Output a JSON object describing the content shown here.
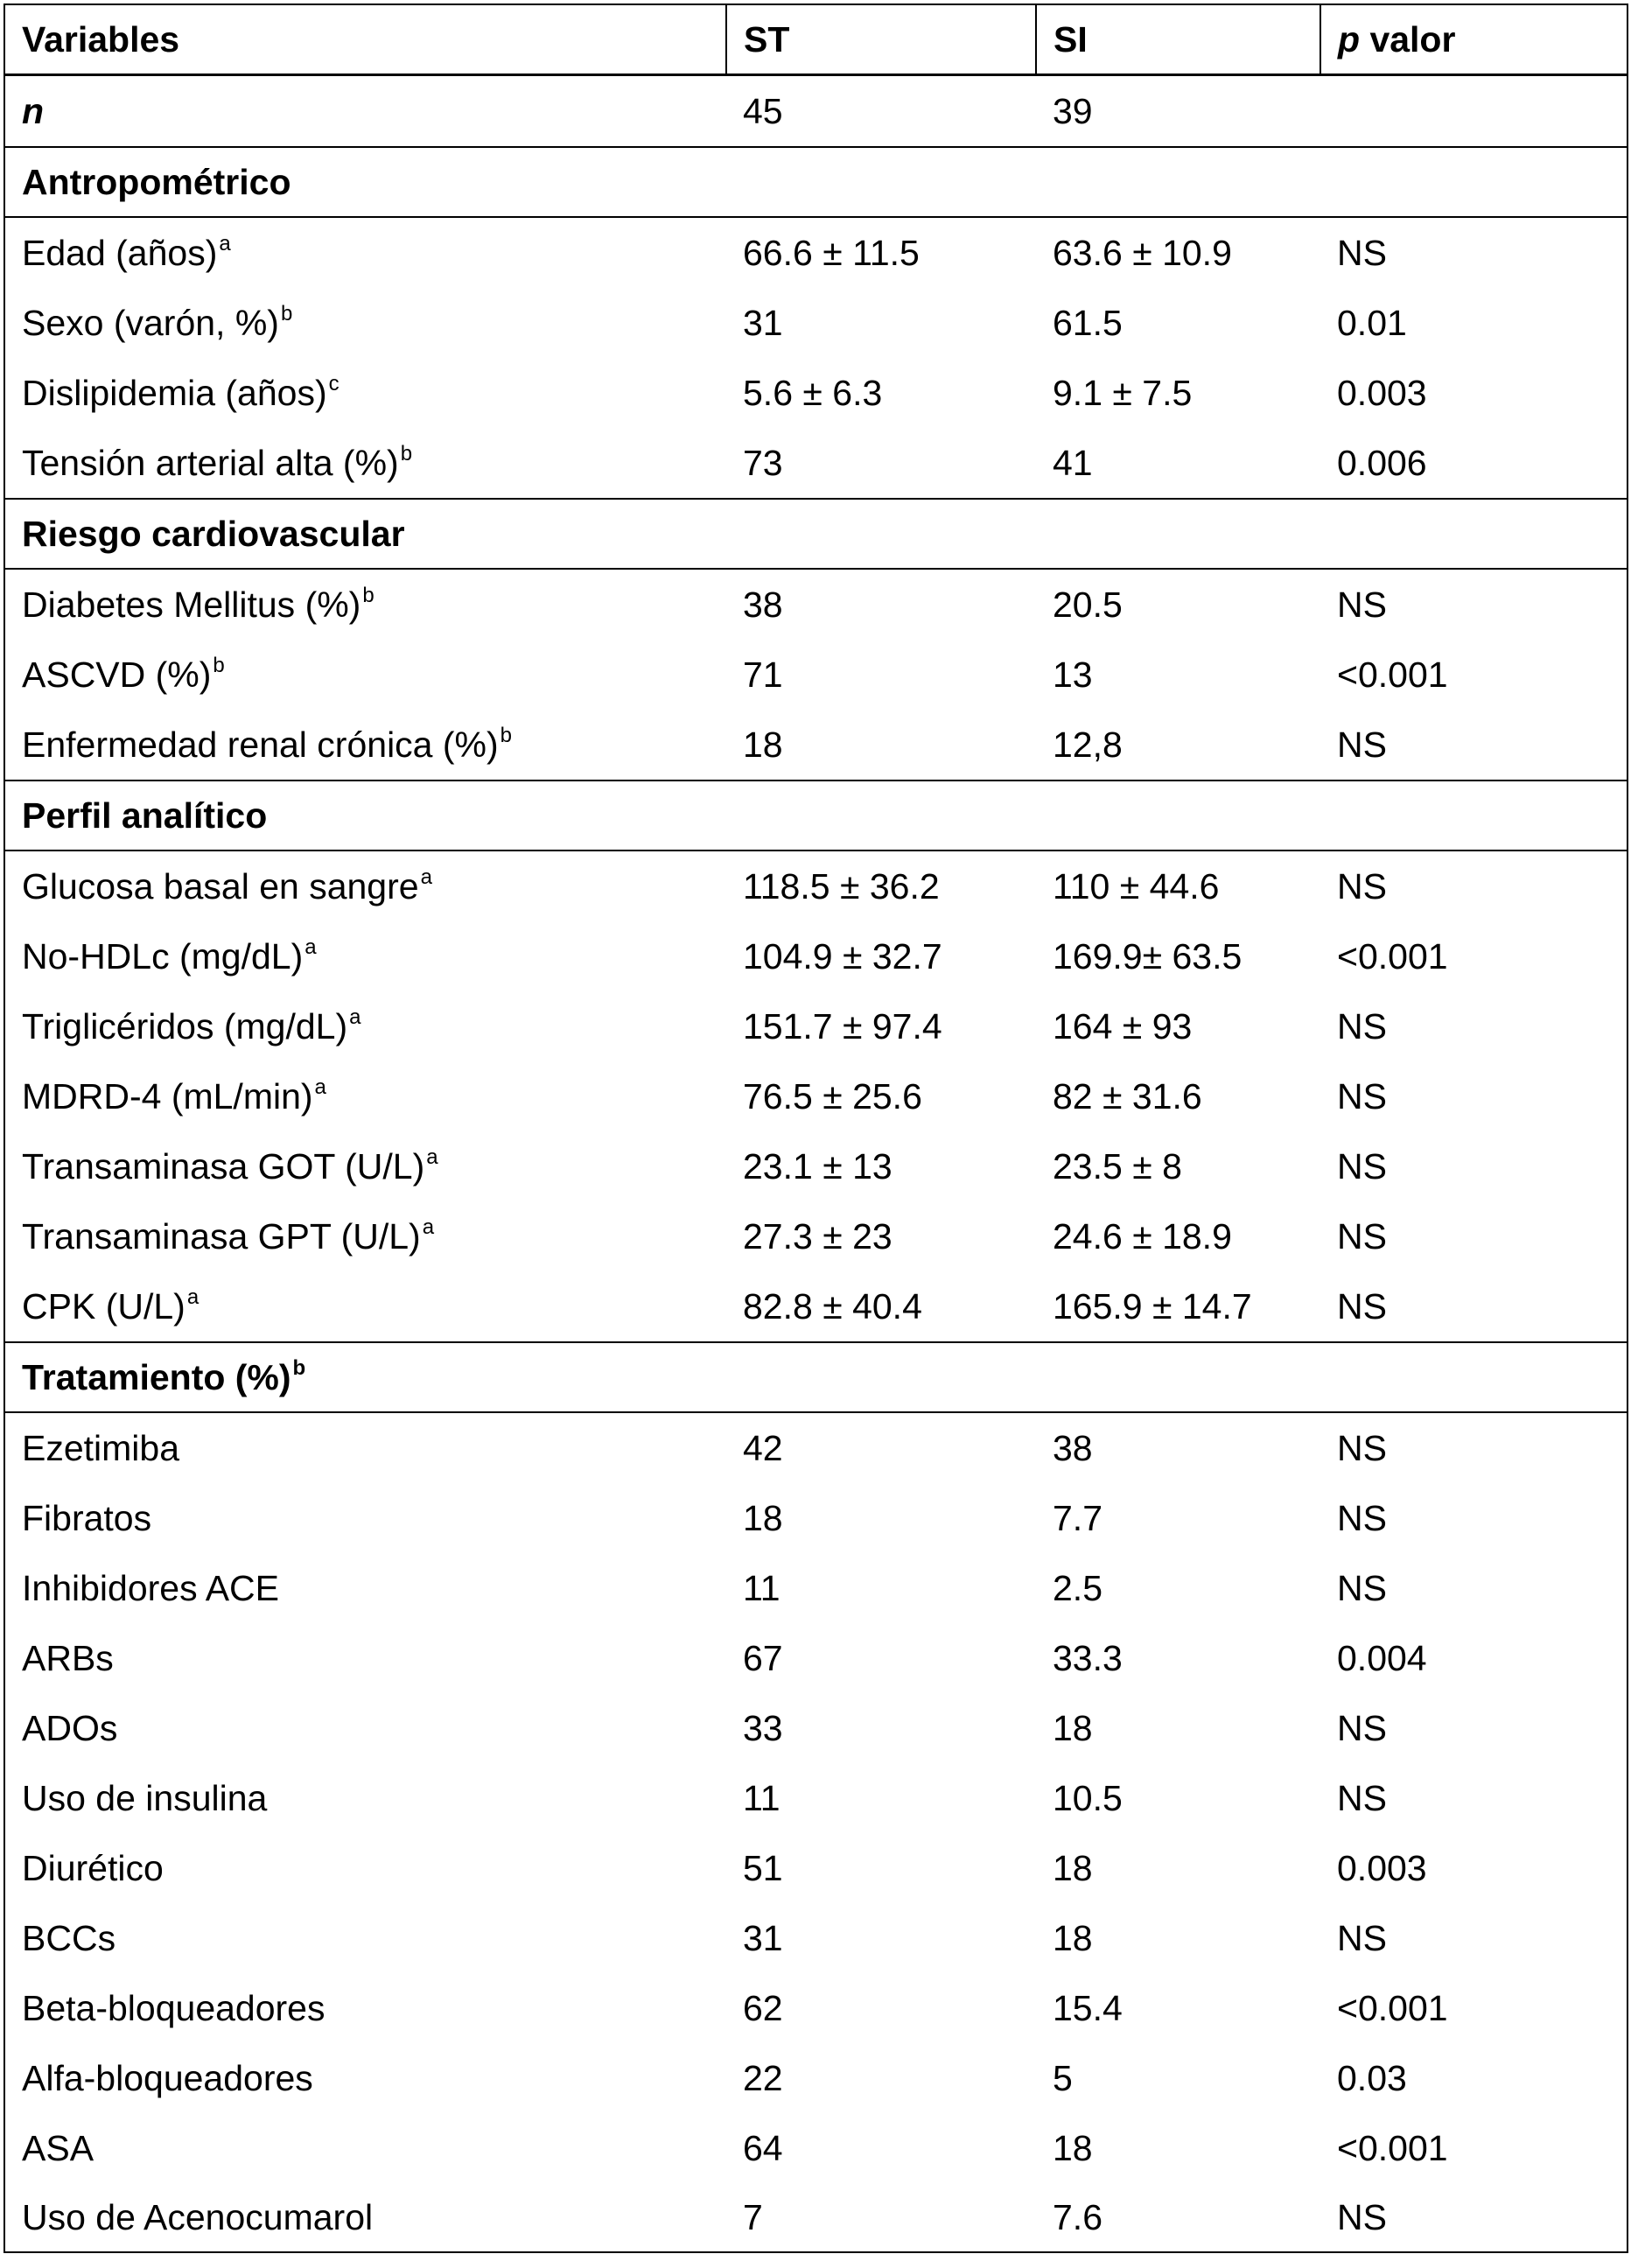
{
  "header": {
    "variables": "Variables",
    "st": "ST",
    "si": "SI",
    "p_italic": "p",
    "p_rest": " valor"
  },
  "n_row": {
    "label": "n",
    "st": "45",
    "si": "39",
    "p": ""
  },
  "sections": [
    {
      "title": "Antropométrico",
      "title_sup": "",
      "rows": [
        {
          "label": "Edad (años)",
          "sup": "a",
          "st": "66.6 ± 11.5",
          "si": "63.6 ± 10.9",
          "p": "NS"
        },
        {
          "label": "Sexo (varón, %)",
          "sup": "b",
          "st": "31",
          "si": "61.5",
          "p": "0.01"
        },
        {
          "label": "Dislipidemia (años)",
          "sup": "c",
          "st": "5.6 ± 6.3",
          "si": "9.1 ± 7.5",
          "p": "0.003"
        },
        {
          "label": "Tensión arterial alta (%)",
          "sup": "b",
          "st": "73",
          "si": "41",
          "p": "0.006"
        }
      ]
    },
    {
      "title": "Riesgo cardiovascular",
      "title_sup": "",
      "rows": [
        {
          "label": "Diabetes Mellitus (%)",
          "sup": "b",
          "st": "38",
          "si": "20.5",
          "p": "NS"
        },
        {
          "label": "ASCVD (%)",
          "sup": "b",
          "st": "71",
          "si": "13",
          "p": "<0.001"
        },
        {
          "label": "Enfermedad renal crónica (%)",
          "sup": "b",
          "st": "18",
          "si": "12,8",
          "p": "NS"
        }
      ]
    },
    {
      "title": "Perfil analítico",
      "title_sup": "",
      "rows": [
        {
          "label": "Glucosa basal en sangre",
          "sup": "a",
          "st": "118.5 ± 36.2",
          "si": "110 ± 44.6",
          "p": "NS"
        },
        {
          "label": "No-HDLc (mg/dL)",
          "sup": "a",
          "st": "104.9 ± 32.7",
          "si": "169.9± 63.5",
          "p": "<0.001"
        },
        {
          "label": "Triglicéridos (mg/dL)",
          "sup": "a",
          "st": "151.7 ± 97.4",
          "si": "164 ± 93",
          "p": "NS"
        },
        {
          "label": "MDRD-4 (mL/min)",
          "sup": "a",
          "st": "76.5 ± 25.6",
          "si": "82 ± 31.6",
          "p": "NS"
        },
        {
          "label": "Transaminasa GOT (U/L)",
          "sup": "a",
          "st": "23.1 ± 13",
          "si": "23.5 ± 8",
          "p": "NS"
        },
        {
          "label": "Transaminasa GPT (U/L)",
          "sup": "a",
          "st": "27.3 ± 23",
          "si": "24.6 ± 18.9",
          "p": "NS"
        },
        {
          "label": "CPK (U/L)",
          "sup": "a",
          "st": "82.8 ± 40.4",
          "si": "165.9 ± 14.7",
          "p": "NS"
        }
      ]
    },
    {
      "title": "Tratamiento (%)",
      "title_sup": "b",
      "rows": [
        {
          "label": "Ezetimiba",
          "sup": "",
          "st": "42",
          "si": "38",
          "p": "NS"
        },
        {
          "label": "Fibratos",
          "sup": "",
          "st": "18",
          "si": "7.7",
          "p": "NS"
        },
        {
          "label": "Inhibidores ACE",
          "sup": "",
          "st": "11",
          "si": "2.5",
          "p": "NS"
        },
        {
          "label": "ARBs",
          "sup": "",
          "st": "67",
          "si": "33.3",
          "p": "0.004"
        },
        {
          "label": "ADOs",
          "sup": "",
          "st": "33",
          "si": "18",
          "p": "NS"
        },
        {
          "label": "Uso de insulina",
          "sup": "",
          "st": "11",
          "si": "10.5",
          "p": "NS"
        },
        {
          "label": "Diurético",
          "sup": "",
          "st": "51",
          "si": "18",
          "p": "0.003"
        },
        {
          "label": "BCCs",
          "sup": "",
          "st": "31",
          "si": "18",
          "p": "NS"
        },
        {
          "label": "Beta-bloqueadores",
          "sup": "",
          "st": "62",
          "si": "15.4",
          "p": "<0.001"
        },
        {
          "label": "Alfa-bloqueadores",
          "sup": "",
          "st": "22",
          "si": "5",
          "p": "0.03"
        },
        {
          "label": "ASA",
          "sup": "",
          "st": "64",
          "si": "18",
          "p": "<0.001"
        },
        {
          "label": "Uso de Acenocumarol",
          "sup": "",
          "st": "7",
          "si": "7.6",
          "p": "NS"
        }
      ]
    }
  ]
}
